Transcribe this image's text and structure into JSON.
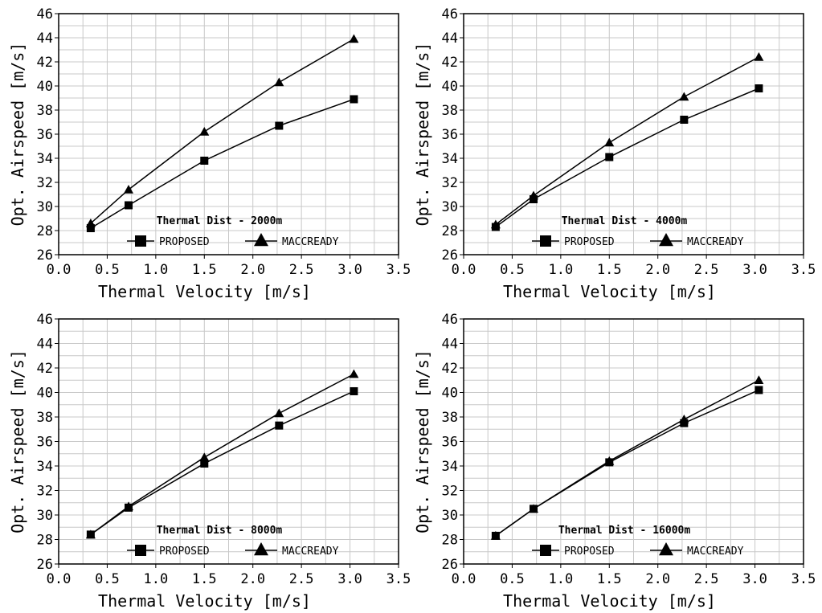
{
  "chart_data": [
    {
      "type": "line",
      "title": "Thermal Dist - 2000m",
      "xlabel": "Thermal Velocity [m/s]",
      "ylabel": "Opt. Airspeed [m/s]",
      "xlim": [
        0.0,
        3.5
      ],
      "ylim": [
        26,
        46
      ],
      "xticks": [
        "0.0",
        "0.5",
        "1.0",
        "1.5",
        "2.0",
        "2.5",
        "3.0",
        "3.5"
      ],
      "yticks": [
        "26",
        "28",
        "30",
        "32",
        "34",
        "36",
        "38",
        "40",
        "42",
        "44",
        "46"
      ],
      "grid": true,
      "legend_position": "bottom-center",
      "x": [
        0.33,
        0.72,
        1.5,
        2.27,
        3.04
      ],
      "series": [
        {
          "name": "PROPOSED",
          "marker": "square",
          "values": [
            28.2,
            30.1,
            33.8,
            36.7,
            38.9
          ]
        },
        {
          "name": "MACCREADY",
          "marker": "triangle",
          "values": [
            28.6,
            31.4,
            36.2,
            40.3,
            43.9
          ]
        }
      ]
    },
    {
      "type": "line",
      "title": "Thermal Dist - 4000m",
      "xlabel": "Thermal Velocity [m/s]",
      "ylabel": "Opt. Airspeed [m/s]",
      "xlim": [
        0.0,
        3.5
      ],
      "ylim": [
        26,
        46
      ],
      "xticks": [
        "0.0",
        "0.5",
        "1.0",
        "1.5",
        "2.0",
        "2.5",
        "3.0",
        "3.5"
      ],
      "yticks": [
        "26",
        "28",
        "30",
        "32",
        "34",
        "36",
        "38",
        "40",
        "42",
        "44",
        "46"
      ],
      "grid": true,
      "legend_position": "bottom-center",
      "x": [
        0.33,
        0.72,
        1.5,
        2.27,
        3.04
      ],
      "series": [
        {
          "name": "PROPOSED",
          "marker": "square",
          "values": [
            28.3,
            30.6,
            34.1,
            37.2,
            39.8
          ]
        },
        {
          "name": "MACCREADY",
          "marker": "triangle",
          "values": [
            28.5,
            30.9,
            35.3,
            39.1,
            42.4
          ]
        }
      ]
    },
    {
      "type": "line",
      "title": "Thermal Dist - 8000m",
      "xlabel": "Thermal Velocity [m/s]",
      "ylabel": "Opt. Airspeed [m/s]",
      "xlim": [
        0.0,
        3.5
      ],
      "ylim": [
        26,
        46
      ],
      "xticks": [
        "0.0",
        "0.5",
        "1.0",
        "1.5",
        "2.0",
        "2.5",
        "3.0",
        "3.5"
      ],
      "yticks": [
        "26",
        "28",
        "30",
        "32",
        "34",
        "36",
        "38",
        "40",
        "42",
        "44",
        "46"
      ],
      "grid": true,
      "legend_position": "bottom-center",
      "x": [
        0.33,
        0.72,
        1.5,
        2.27,
        3.04
      ],
      "series": [
        {
          "name": "PROPOSED",
          "marker": "square",
          "values": [
            28.4,
            30.6,
            34.2,
            37.3,
            40.1
          ]
        },
        {
          "name": "MACCREADY",
          "marker": "triangle",
          "values": [
            28.4,
            30.7,
            34.7,
            38.3,
            41.5
          ]
        }
      ]
    },
    {
      "type": "line",
      "title": "Thermal Dist - 16000m",
      "xlabel": "Thermal Velocity [m/s]",
      "ylabel": "Opt. Airspeed [m/s]",
      "xlim": [
        0.0,
        3.5
      ],
      "ylim": [
        26,
        46
      ],
      "xticks": [
        "0.0",
        "0.5",
        "1.0",
        "1.5",
        "2.0",
        "2.5",
        "3.0",
        "3.5"
      ],
      "yticks": [
        "26",
        "28",
        "30",
        "32",
        "34",
        "36",
        "38",
        "40",
        "42",
        "44",
        "46"
      ],
      "grid": true,
      "legend_position": "bottom-center",
      "x": [
        0.33,
        0.72,
        1.5,
        2.27,
        3.04
      ],
      "series": [
        {
          "name": "PROPOSED",
          "marker": "square",
          "values": [
            28.3,
            30.5,
            34.3,
            37.5,
            40.2
          ]
        },
        {
          "name": "MACCREADY",
          "marker": "triangle",
          "values": [
            28.3,
            30.5,
            34.4,
            37.8,
            41.0
          ]
        }
      ]
    }
  ]
}
